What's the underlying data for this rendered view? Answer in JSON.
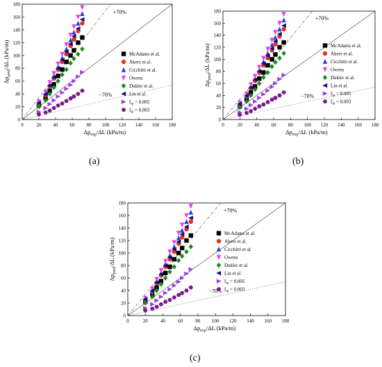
{
  "chart_data": [
    {
      "type": "scatter",
      "panel_label": "(a)",
      "xlabel": "Δp_exp/ΔL (kPa/m)",
      "ylabel": "Δp_pred/ΔL (kPa/m)",
      "xlim": [
        0,
        180
      ],
      "ylim": [
        0,
        180
      ],
      "xticks": [
        0,
        20,
        40,
        60,
        80,
        100,
        120,
        140,
        160,
        180
      ],
      "yticks": [
        0,
        20,
        40,
        60,
        80,
        100,
        120,
        140,
        160,
        180
      ],
      "grid": false,
      "legend_position": "right",
      "annotations": [
        "+70%",
        "−70%"
      ],
      "series_ref": "shared"
    },
    {
      "type": "scatter",
      "panel_label": "(b)",
      "xlabel": "Δp_exp/ΔL (kPa/m)",
      "ylabel": "Δp_pred/ΔL (kPa/m)",
      "xlim": [
        0,
        180
      ],
      "ylim": [
        0,
        180
      ],
      "xticks": [
        0,
        20,
        40,
        60,
        80,
        100,
        120,
        140,
        160,
        180
      ],
      "yticks": [
        0,
        20,
        40,
        60,
        80,
        100,
        120,
        140,
        160,
        180
      ],
      "grid": false,
      "legend_position": "right",
      "annotations": [
        "+70%",
        "−70%"
      ],
      "series_ref": "shared"
    },
    {
      "type": "scatter",
      "panel_label": "(c)",
      "xlabel": "Δp_exp/ΔL (kPa/m)",
      "ylabel": "Δp_pred/ΔL (kPa/m)",
      "xlim": [
        0,
        180
      ],
      "ylim": [
        0,
        180
      ],
      "xticks": [
        0,
        20,
        40,
        60,
        80,
        100,
        120,
        140,
        160,
        180
      ],
      "yticks": [
        0,
        20,
        40,
        60,
        80,
        100,
        120,
        140,
        160,
        180
      ],
      "grid": false,
      "legend_position": "right",
      "annotations": [
        "+70%",
        "−70%"
      ],
      "series_ref": "shared"
    }
  ],
  "series": [
    {
      "name": "McAdams et al.",
      "color": "#000000",
      "marker": "square",
      "x": [
        20,
        28,
        33,
        38,
        43,
        48,
        53,
        58,
        62,
        67,
        72
      ],
      "y": [
        22,
        33,
        45,
        55,
        68,
        78,
        90,
        100,
        108,
        120,
        128
      ]
    },
    {
      "name": "Akers et al.",
      "color": "#e8311a",
      "marker": "circle",
      "x": [
        20,
        28,
        33,
        38,
        43,
        48,
        53,
        58,
        62,
        67,
        72
      ],
      "y": [
        25,
        38,
        52,
        64,
        78,
        90,
        102,
        115,
        125,
        138,
        150
      ]
    },
    {
      "name": "Cicchitti et al.",
      "color": "#2a3bd6",
      "marker": "triangle-up",
      "x": [
        20,
        28,
        33,
        38,
        43,
        48,
        53,
        58,
        62,
        67,
        72
      ],
      "y": [
        27,
        40,
        55,
        68,
        82,
        96,
        110,
        124,
        136,
        150,
        165
      ]
    },
    {
      "name": "Owens",
      "color": "#e53ce5",
      "marker": "triangle-down",
      "x": [
        20,
        28,
        33,
        38,
        43,
        48,
        53,
        58,
        62,
        67,
        72
      ],
      "y": [
        28,
        43,
        58,
        72,
        87,
        102,
        117,
        132,
        145,
        160,
        175
      ]
    },
    {
      "name": "Dukler et al.",
      "color": "#1a8a1a",
      "marker": "diamond",
      "x": [
        20,
        28,
        33,
        38,
        43,
        48,
        53,
        58,
        62,
        67,
        72
      ],
      "y": [
        20,
        30,
        40,
        50,
        60,
        70,
        78,
        88,
        95,
        102,
        110
      ]
    },
    {
      "name": "Lin et al.",
      "color": "#10107a",
      "marker": "triangle-left",
      "x": [
        20,
        28,
        33,
        38,
        43,
        48,
        53,
        58,
        62,
        67,
        72
      ],
      "y": [
        26,
        40,
        53,
        66,
        80,
        93,
        106,
        118,
        130,
        142,
        156
      ]
    },
    {
      "name": "f_tp = 0.005",
      "color": "#9b3fe0",
      "marker": "triangle-right",
      "x": [
        20,
        28,
        33,
        38,
        43,
        48,
        53,
        58,
        62,
        67,
        72
      ],
      "y": [
        12,
        18,
        24,
        30,
        36,
        42,
        48,
        54,
        60,
        67,
        74
      ]
    },
    {
      "name": "f_tp = 0.003",
      "color": "#7a1a8a",
      "marker": "hexagon",
      "x": [
        20,
        28,
        33,
        38,
        43,
        48,
        53,
        58,
        62,
        67,
        72
      ],
      "y": [
        8,
        11,
        14,
        18,
        22,
        25,
        29,
        33,
        36,
        40,
        45
      ]
    }
  ],
  "legend": {
    "entries": [
      "McAdams et al.",
      "Akers et al.",
      "Cicchitti et al.",
      "Owens",
      "Dukler et al.",
      "Lin et al.",
      "f_tp = 0.005",
      "f_tp = 0.003"
    ]
  },
  "axis": {
    "xlabel_main": "Δp",
    "xlabel_sub": "exp",
    "xlabel_rest": "/ΔL (kPa/m)",
    "ylabel_main": "Δp",
    "ylabel_sub": "pred",
    "ylabel_rest": "/ΔL (kPa/m)"
  },
  "captions": [
    "(a)",
    "(b)",
    "(c)"
  ],
  "ann": {
    "plus": "+70%",
    "minus": "−70%"
  }
}
